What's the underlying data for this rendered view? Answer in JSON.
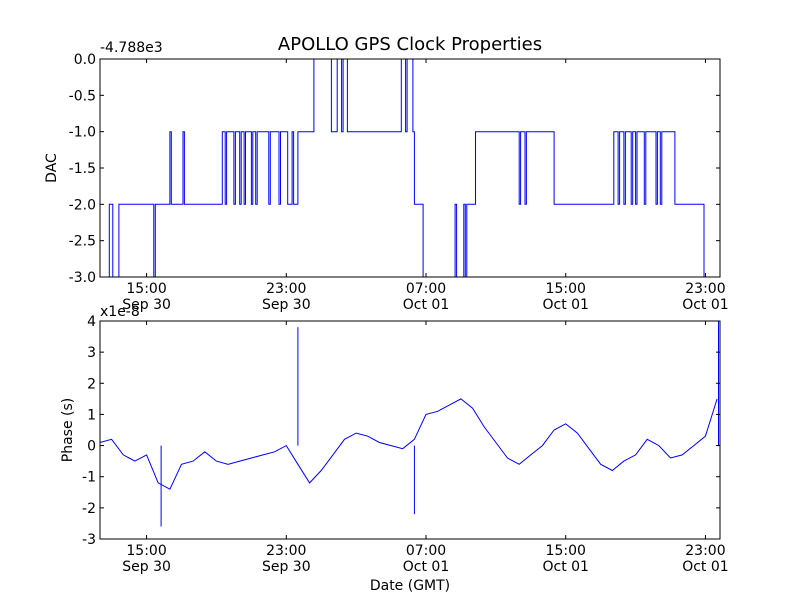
{
  "title": "APOLLO GPS Clock Properties",
  "line_color": "#0000ff",
  "chart_data": [
    {
      "type": "line",
      "title": "APOLLO GPS Clock Properties",
      "ylabel": "DAC",
      "xlabel": "",
      "offset_label": "-4.788e3",
      "ylim": [
        -3.0,
        0.0
      ],
      "xlim": [
        "Sep 30 12:20",
        "Oct 01 23:50"
      ],
      "grid": false,
      "x_ticks": [
        {
          "line1": "15:00",
          "line2": "Sep 30",
          "at": "Sep 30 15:00"
        },
        {
          "line1": "23:00",
          "line2": "Sep 30",
          "at": "Sep 30 23:00"
        },
        {
          "line1": "07:00",
          "line2": "Oct 01",
          "at": "Oct 01 07:00"
        },
        {
          "line1": "15:00",
          "line2": "Oct 01",
          "at": "Oct 01 15:00"
        },
        {
          "line1": "23:00",
          "line2": "Oct 01",
          "at": "Oct 01 23:00"
        }
      ],
      "y_ticks": [
        "0.0",
        "-0.5",
        "-1.0",
        "-1.5",
        "-2.0",
        "-2.5",
        "-3.0"
      ],
      "series": [
        {
          "x": [
            "Sep 30 12:20",
            "Sep 30 12:48",
            "Sep 30 12:52",
            "Sep 30 13:00",
            "Sep 30 13:04",
            "Sep 30 13:20",
            "Sep 30 13:25",
            "Sep 30 13:55",
            "Sep 30 14:00",
            "Sep 30 15:00",
            "Sep 30 15:20",
            "Sep 30 15:25",
            "Sep 30 15:30",
            "Sep 30 16:15",
            "Sep 30 16:20",
            "Sep 30 16:25",
            "Sep 30 17:00",
            "Sep 30 17:05",
            "Sep 30 17:10",
            "Sep 30 19:15",
            "Sep 30 19:20",
            "Sep 30 19:30",
            "Sep 30 19:35",
            "Sep 30 20:00",
            "Sep 30 20:05",
            "Sep 30 20:20",
            "Sep 30 20:25",
            "Sep 30 20:35",
            "Sep 30 20:40",
            "Sep 30 21:00",
            "Sep 30 21:05",
            "Sep 30 21:15",
            "Sep 30 21:20",
            "Sep 30 22:00",
            "Sep 30 22:05",
            "Sep 30 22:35",
            "Sep 30 22:40",
            "Sep 30 23:00",
            "Sep 30 23:05",
            "Sep 30 23:20",
            "Sep 30 23:25",
            "Sep 30 23:40",
            "Sep 30 23:45",
            "Oct 01 00:30",
            "Oct 01 00:35",
            "Oct 01 01:30",
            "Oct 01 01:35",
            "Oct 01 01:50",
            "Oct 01 01:55",
            "Oct 01 02:10",
            "Oct 01 02:15",
            "Oct 01 02:30",
            "Oct 01 02:35",
            "Oct 01 05:30",
            "Oct 01 05:35",
            "Oct 01 05:50",
            "Oct 01 05:55",
            "Oct 01 06:15",
            "Oct 01 06:20",
            "Oct 01 06:45",
            "Oct 01 06:50",
            "Oct 01 08:40",
            "Oct 01 08:45",
            "Oct 01 09:10",
            "Oct 01 09:15",
            "Oct 01 09:20",
            "Oct 01 09:25",
            "Oct 01 09:45",
            "Oct 01 09:50",
            "Oct 01 12:20",
            "Oct 01 12:25",
            "Oct 01 12:40",
            "Oct 01 12:45",
            "Oct 01 14:20",
            "Oct 01 14:25",
            "Oct 01 17:40",
            "Oct 01 17:45",
            "Oct 01 18:00",
            "Oct 01 18:05",
            "Oct 01 18:20",
            "Oct 01 18:25",
            "Oct 01 18:45",
            "Oct 01 18:50",
            "Oct 01 19:00",
            "Oct 01 19:05",
            "Oct 01 19:30",
            "Oct 01 19:35",
            "Oct 01 20:10",
            "Oct 01 20:15",
            "Oct 01 20:25",
            "Oct 01 20:30",
            "Oct 01 21:10",
            "Oct 01 21:15",
            "Oct 01 22:50",
            "Oct 01 22:55",
            "Oct 01 23:30",
            "Oct 01 23:35",
            "Oct 01 23:50"
          ],
          "values": [
            -3.0,
            -3.0,
            -2.0,
            -2.0,
            -3.0,
            -3.0,
            -2.0,
            -2.0,
            -2.0,
            -2.0,
            -2.0,
            -3.0,
            -2.0,
            -2.0,
            -1.0,
            -2.0,
            -2.0,
            -1.0,
            -2.0,
            -2.0,
            -1.0,
            -2.0,
            -1.0,
            -2.0,
            -1.0,
            -2.0,
            -1.0,
            -2.0,
            -1.0,
            -2.0,
            -1.0,
            -2.0,
            -1.0,
            -2.0,
            -1.0,
            -2.0,
            -1.0,
            -1.0,
            -2.0,
            -1.0,
            -2.0,
            -1.0,
            -1.0,
            -1.0,
            0.0,
            0.0,
            -1.0,
            -1.0,
            0.0,
            -1.0,
            0.0,
            -1.0,
            -1.0,
            -1.0,
            0.0,
            -1.0,
            0.0,
            -1.0,
            -2.0,
            -2.0,
            -3.0,
            -2.0,
            -3.0,
            -2.0,
            -3.0,
            -2.0,
            -2.0,
            -2.0,
            -1.0,
            -2.0,
            -1.0,
            -2.0,
            -1.0,
            -2.0,
            -2.0,
            -2.0,
            -1.0,
            -2.0,
            -1.0,
            -2.0,
            -1.0,
            -2.0,
            -1.0,
            -2.0,
            -1.0,
            -2.0,
            -1.0,
            -2.0,
            -1.0,
            -2.0,
            -1.0,
            -1.0,
            -2.0,
            -2.0,
            -3.0,
            -3.0,
            -3.0,
            -3.0
          ]
        }
      ]
    },
    {
      "type": "line",
      "title": "",
      "ylabel": "Phase (s)",
      "xlabel": "Date (GMT)",
      "offset_label": "x1e-8",
      "ylim": [
        -3,
        4
      ],
      "xlim": [
        "Sep 30 12:20",
        "Oct 01 23:50"
      ],
      "grid": false,
      "x_ticks": [
        {
          "line1": "15:00",
          "line2": "Sep 30",
          "at": "Sep 30 15:00"
        },
        {
          "line1": "23:00",
          "line2": "Sep 30",
          "at": "Sep 30 23:00"
        },
        {
          "line1": "07:00",
          "line2": "Oct 01",
          "at": "Oct 01 07:00"
        },
        {
          "line1": "15:00",
          "line2": "Oct 01",
          "at": "Oct 01 15:00"
        },
        {
          "line1": "23:00",
          "line2": "Oct 01",
          "at": "Oct 01 23:00"
        }
      ],
      "y_ticks": [
        "4",
        "3",
        "2",
        "1",
        "0",
        "-1",
        "-2",
        "-3"
      ],
      "series": [
        {
          "x": [
            "Sep 30 12:20",
            "Sep 30 13:00",
            "Sep 30 13:40",
            "Sep 30 14:20",
            "Sep 30 15:00",
            "Sep 30 15:40",
            "Sep 30 16:20",
            "Sep 30 17:00",
            "Sep 30 17:40",
            "Sep 30 18:20",
            "Sep 30 19:00",
            "Sep 30 19:40",
            "Sep 30 20:20",
            "Sep 30 21:00",
            "Sep 30 21:40",
            "Sep 30 22:20",
            "Sep 30 23:00",
            "Sep 30 23:40",
            "Oct 01 00:20",
            "Oct 01 01:00",
            "Oct 01 01:40",
            "Oct 01 02:20",
            "Oct 01 03:00",
            "Oct 01 03:40",
            "Oct 01 04:20",
            "Oct 01 05:00",
            "Oct 01 05:40",
            "Oct 01 06:20",
            "Oct 01 07:00",
            "Oct 01 07:40",
            "Oct 01 08:20",
            "Oct 01 09:00",
            "Oct 01 09:40",
            "Oct 01 10:20",
            "Oct 01 11:00",
            "Oct 01 11:40",
            "Oct 01 12:20",
            "Oct 01 13:00",
            "Oct 01 13:40",
            "Oct 01 14:20",
            "Oct 01 15:00",
            "Oct 01 15:40",
            "Oct 01 16:20",
            "Oct 01 17:00",
            "Oct 01 17:40",
            "Oct 01 18:20",
            "Oct 01 19:00",
            "Oct 01 19:40",
            "Oct 01 20:20",
            "Oct 01 21:00",
            "Oct 01 21:40",
            "Oct 01 22:20",
            "Oct 01 23:00",
            "Oct 01 23:40"
          ],
          "values": [
            0.1,
            0.2,
            -0.3,
            -0.5,
            -0.3,
            -1.2,
            -1.4,
            -0.6,
            -0.5,
            -0.2,
            -0.5,
            -0.6,
            -0.5,
            -0.4,
            -0.3,
            -0.2,
            0.0,
            -0.6,
            -1.2,
            -0.8,
            -0.3,
            0.2,
            0.4,
            0.3,
            0.1,
            0.0,
            -0.1,
            0.2,
            1.0,
            1.1,
            1.3,
            1.5,
            1.2,
            0.6,
            0.1,
            -0.4,
            -0.6,
            -0.3,
            0.0,
            0.5,
            0.7,
            0.4,
            -0.1,
            -0.6,
            -0.8,
            -0.5,
            -0.3,
            0.2,
            0.0,
            -0.4,
            -0.3,
            0.0,
            0.3,
            1.5
          ]
        }
      ],
      "annotations": [
        {
          "x": "Sep 30 23:40",
          "y": 3.8,
          "note": "spike"
        },
        {
          "x": "Oct 01 23:45",
          "y": 4.0,
          "note": "spike"
        },
        {
          "x": "Sep 30 15:50",
          "y": -2.6,
          "note": "dip"
        },
        {
          "x": "Oct 01 06:20",
          "y": -2.2,
          "note": "dip"
        }
      ]
    }
  ]
}
